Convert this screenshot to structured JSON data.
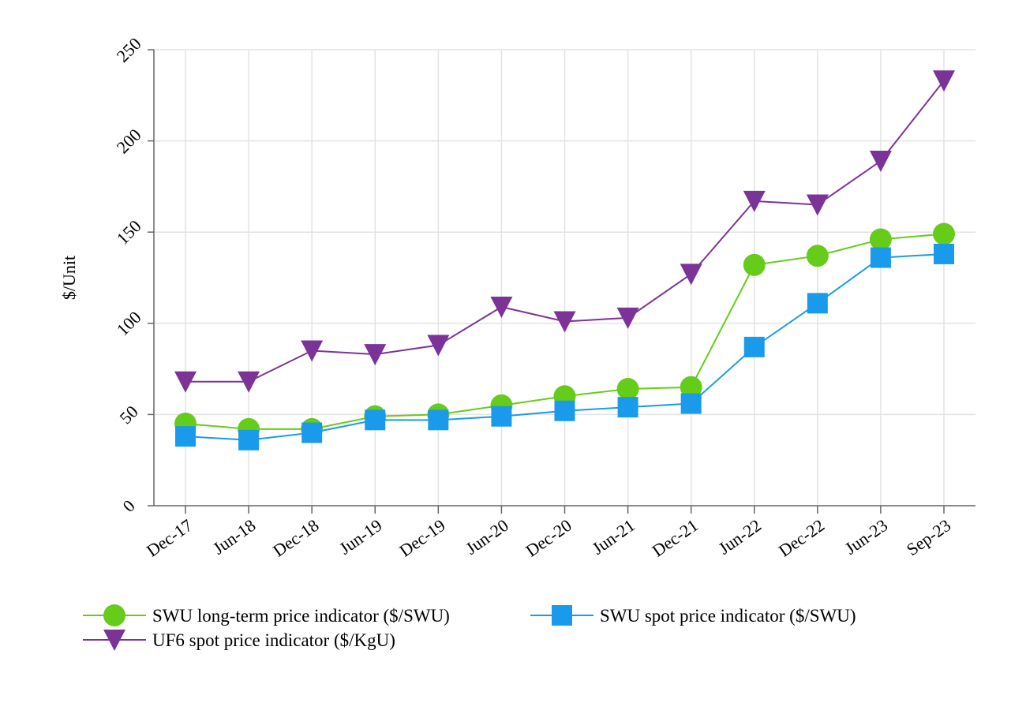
{
  "chart_data": {
    "type": "line",
    "title": "",
    "xlabel": "",
    "ylabel": "$/Unit",
    "ylim": [
      0,
      250
    ],
    "yticks": [
      0,
      50,
      100,
      150,
      200,
      250
    ],
    "grid": true,
    "legend_position": "bottom",
    "categories": [
      "Dec-17",
      "Jun-18",
      "Dec-18",
      "Jun-19",
      "Dec-19",
      "Jun-20",
      "Dec-20",
      "Jun-21",
      "Dec-21",
      "Jun-22",
      "Dec-22",
      "Jun-23",
      "Sep-23"
    ],
    "series": [
      {
        "name": "SWU long-term price indicator ($/SWU)",
        "color": "#66cc1a",
        "marker": "circle",
        "values": [
          45,
          42,
          42,
          49,
          50,
          55,
          60,
          64,
          65,
          132,
          137,
          146,
          149
        ]
      },
      {
        "name": "SWU spot price indicator ($/SWU)",
        "color": "#1a9aeb",
        "marker": "square",
        "values": [
          38,
          36,
          40,
          47,
          47,
          49,
          52,
          54,
          56,
          87,
          111,
          136,
          138
        ]
      },
      {
        "name": "UF6 spot price indicator ($/KgU)",
        "color": "#7b3398",
        "marker": "triangle-down",
        "values": [
          68,
          68,
          85,
          83,
          88,
          109,
          101,
          103,
          127,
          167,
          165,
          189,
          233
        ]
      }
    ]
  }
}
